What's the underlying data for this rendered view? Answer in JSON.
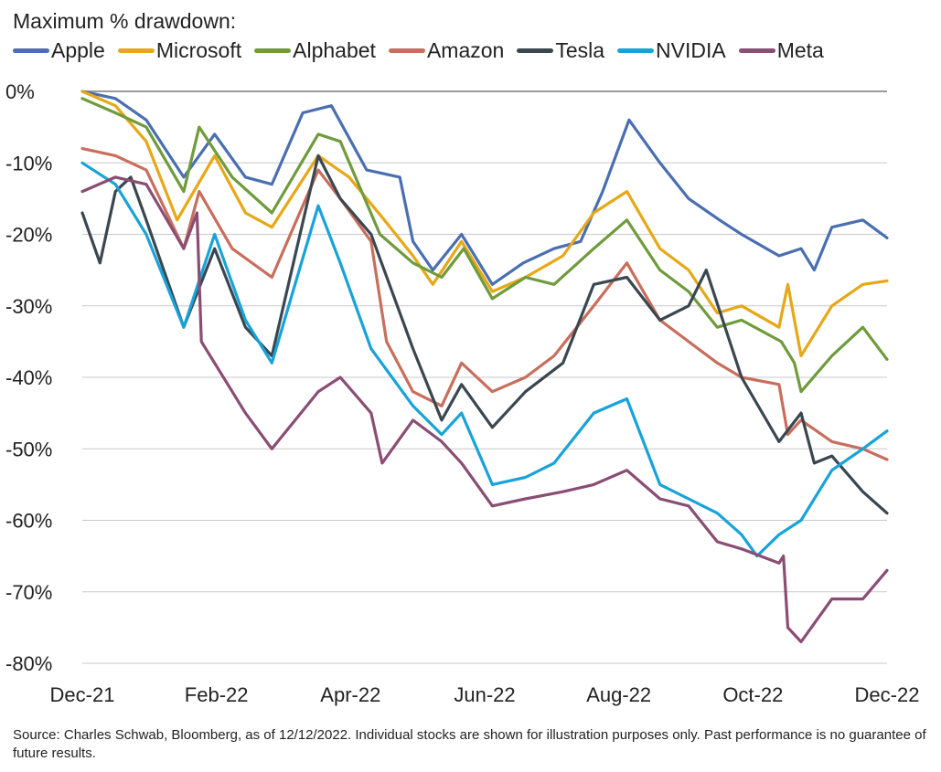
{
  "chart_data": {
    "type": "line",
    "title": "Maximum % drawdown:",
    "x_ticks": [
      "Dec-21",
      "Feb-22",
      "Apr-22",
      "Jun-22",
      "Aug-22",
      "Oct-22",
      "Dec-22"
    ],
    "ylim": [
      -80,
      0
    ],
    "y_ticks": [
      0,
      -10,
      -20,
      -30,
      -40,
      -50,
      -60,
      -70,
      -80
    ],
    "y_tick_labels": [
      "0%",
      "-10%",
      "-20%",
      "-30%",
      "-40%",
      "-50%",
      "-60%",
      "-70%",
      "-80%"
    ],
    "grid": "horizontal",
    "legend_position": "top",
    "series": [
      {
        "name": "Apple",
        "color": "#4a6fb0",
        "points": [
          [
            "2021-12-12",
            0
          ],
          [
            "2021-12-27",
            -1
          ],
          [
            "2022-01-10",
            -4
          ],
          [
            "2022-01-27",
            -12
          ],
          [
            "2022-02-10",
            -6
          ],
          [
            "2022-02-24",
            -12
          ],
          [
            "2022-03-08",
            -13
          ],
          [
            "2022-03-22",
            -3
          ],
          [
            "2022-04-04",
            -2
          ],
          [
            "2022-04-20",
            -11
          ],
          [
            "2022-05-05",
            -12
          ],
          [
            "2022-05-11",
            -21
          ],
          [
            "2022-05-20",
            -25
          ],
          [
            "2022-06-02",
            -20
          ],
          [
            "2022-06-16",
            -27
          ],
          [
            "2022-06-30",
            -24
          ],
          [
            "2022-07-14",
            -22
          ],
          [
            "2022-07-26",
            -21
          ],
          [
            "2022-08-05",
            -14
          ],
          [
            "2022-08-17",
            -4
          ],
          [
            "2022-08-31",
            -10
          ],
          [
            "2022-09-13",
            -15
          ],
          [
            "2022-09-27",
            -18
          ],
          [
            "2022-10-07",
            -20
          ],
          [
            "2022-10-24",
            -23
          ],
          [
            "2022-11-03",
            -22
          ],
          [
            "2022-11-09",
            -25
          ],
          [
            "2022-11-17",
            -19
          ],
          [
            "2022-12-01",
            -18
          ],
          [
            "2022-12-12",
            -20.5
          ]
        ]
      },
      {
        "name": "Microsoft",
        "color": "#e6a817",
        "points": [
          [
            "2021-12-12",
            0
          ],
          [
            "2021-12-27",
            -2
          ],
          [
            "2022-01-10",
            -7
          ],
          [
            "2022-01-24",
            -18
          ],
          [
            "2022-02-10",
            -9
          ],
          [
            "2022-02-24",
            -17
          ],
          [
            "2022-03-08",
            -19
          ],
          [
            "2022-03-29",
            -9
          ],
          [
            "2022-04-12",
            -12
          ],
          [
            "2022-04-28",
            -18
          ],
          [
            "2022-05-11",
            -23
          ],
          [
            "2022-05-20",
            -27
          ],
          [
            "2022-06-02",
            -21
          ],
          [
            "2022-06-16",
            -28
          ],
          [
            "2022-07-01",
            -26
          ],
          [
            "2022-07-18",
            -23
          ],
          [
            "2022-08-01",
            -17
          ],
          [
            "2022-08-16",
            -14
          ],
          [
            "2022-08-31",
            -22
          ],
          [
            "2022-09-13",
            -25
          ],
          [
            "2022-09-26",
            -31
          ],
          [
            "2022-10-07",
            -30
          ],
          [
            "2022-10-24",
            -33
          ],
          [
            "2022-10-28",
            -27
          ],
          [
            "2022-11-03",
            -37
          ],
          [
            "2022-11-17",
            -30
          ],
          [
            "2022-12-01",
            -27
          ],
          [
            "2022-12-12",
            -26.5
          ]
        ]
      },
      {
        "name": "Alphabet",
        "color": "#6f9b3c",
        "points": [
          [
            "2021-12-12",
            -1
          ],
          [
            "2021-12-27",
            -3
          ],
          [
            "2022-01-10",
            -5
          ],
          [
            "2022-01-27",
            -14
          ],
          [
            "2022-02-03",
            -5
          ],
          [
            "2022-02-18",
            -12
          ],
          [
            "2022-03-08",
            -17
          ],
          [
            "2022-03-29",
            -6
          ],
          [
            "2022-04-08",
            -7
          ],
          [
            "2022-04-26",
            -20
          ],
          [
            "2022-05-11",
            -24
          ],
          [
            "2022-05-24",
            -26
          ],
          [
            "2022-06-03",
            -22
          ],
          [
            "2022-06-16",
            -29
          ],
          [
            "2022-07-01",
            -26
          ],
          [
            "2022-07-14",
            -27
          ],
          [
            "2022-08-01",
            -22
          ],
          [
            "2022-08-16",
            -18
          ],
          [
            "2022-08-31",
            -25
          ],
          [
            "2022-09-13",
            -28
          ],
          [
            "2022-09-26",
            -33
          ],
          [
            "2022-10-07",
            -32
          ],
          [
            "2022-10-25",
            -35
          ],
          [
            "2022-10-31",
            -38
          ],
          [
            "2022-11-03",
            -42
          ],
          [
            "2022-11-17",
            -37
          ],
          [
            "2022-12-01",
            -33
          ],
          [
            "2022-12-12",
            -37.5
          ]
        ]
      },
      {
        "name": "Amazon",
        "color": "#c86e5c",
        "points": [
          [
            "2021-12-12",
            -8
          ],
          [
            "2021-12-27",
            -9
          ],
          [
            "2022-01-10",
            -11
          ],
          [
            "2022-01-27",
            -22
          ],
          [
            "2022-02-03",
            -14
          ],
          [
            "2022-02-18",
            -22
          ],
          [
            "2022-03-08",
            -26
          ],
          [
            "2022-03-29",
            -11
          ],
          [
            "2022-04-08",
            -15
          ],
          [
            "2022-04-22",
            -21
          ],
          [
            "2022-04-29",
            -35
          ],
          [
            "2022-05-11",
            -42
          ],
          [
            "2022-05-24",
            -44
          ],
          [
            "2022-06-02",
            -38
          ],
          [
            "2022-06-16",
            -42
          ],
          [
            "2022-07-01",
            -40
          ],
          [
            "2022-07-14",
            -37
          ],
          [
            "2022-08-01",
            -30
          ],
          [
            "2022-08-16",
            -24
          ],
          [
            "2022-08-31",
            -32
          ],
          [
            "2022-09-13",
            -35
          ],
          [
            "2022-09-26",
            -38
          ],
          [
            "2022-10-07",
            -40
          ],
          [
            "2022-10-24",
            -41
          ],
          [
            "2022-10-28",
            -48
          ],
          [
            "2022-11-03",
            -46
          ],
          [
            "2022-11-17",
            -49
          ],
          [
            "2022-12-01",
            -50
          ],
          [
            "2022-12-12",
            -51.5
          ]
        ]
      },
      {
        "name": "Tesla",
        "color": "#3a4750",
        "points": [
          [
            "2021-12-12",
            -17
          ],
          [
            "2021-12-20",
            -24
          ],
          [
            "2021-12-27",
            -14
          ],
          [
            "2022-01-03",
            -12
          ],
          [
            "2022-01-10",
            -18
          ],
          [
            "2022-01-27",
            -33
          ],
          [
            "2022-02-10",
            -22
          ],
          [
            "2022-02-24",
            -33
          ],
          [
            "2022-03-08",
            -37
          ],
          [
            "2022-03-29",
            -9
          ],
          [
            "2022-04-08",
            -15
          ],
          [
            "2022-04-22",
            -20
          ],
          [
            "2022-05-11",
            -36
          ],
          [
            "2022-05-24",
            -46
          ],
          [
            "2022-06-02",
            -41
          ],
          [
            "2022-06-16",
            -47
          ],
          [
            "2022-07-01",
            -42
          ],
          [
            "2022-07-18",
            -38
          ],
          [
            "2022-08-01",
            -27
          ],
          [
            "2022-08-16",
            -26
          ],
          [
            "2022-08-31",
            -32
          ],
          [
            "2022-09-13",
            -30
          ],
          [
            "2022-09-21",
            -25
          ],
          [
            "2022-10-07",
            -40
          ],
          [
            "2022-10-24",
            -49
          ],
          [
            "2022-11-03",
            -45
          ],
          [
            "2022-11-09",
            -52
          ],
          [
            "2022-11-17",
            -51
          ],
          [
            "2022-12-01",
            -56
          ],
          [
            "2022-12-12",
            -59
          ]
        ]
      },
      {
        "name": "NVIDIA",
        "color": "#18a3d8",
        "points": [
          [
            "2021-12-12",
            -10
          ],
          [
            "2021-12-27",
            -13
          ],
          [
            "2022-01-10",
            -20
          ],
          [
            "2022-01-27",
            -33
          ],
          [
            "2022-02-10",
            -20
          ],
          [
            "2022-02-24",
            -32
          ],
          [
            "2022-03-08",
            -38
          ],
          [
            "2022-03-29",
            -16
          ],
          [
            "2022-04-08",
            -24
          ],
          [
            "2022-04-22",
            -36
          ],
          [
            "2022-05-11",
            -44
          ],
          [
            "2022-05-24",
            -48
          ],
          [
            "2022-06-02",
            -45
          ],
          [
            "2022-06-16",
            -55
          ],
          [
            "2022-07-01",
            -54
          ],
          [
            "2022-07-14",
            -52
          ],
          [
            "2022-08-01",
            -45
          ],
          [
            "2022-08-16",
            -43
          ],
          [
            "2022-08-31",
            -55
          ],
          [
            "2022-09-13",
            -57
          ],
          [
            "2022-09-26",
            -59
          ],
          [
            "2022-10-07",
            -62
          ],
          [
            "2022-10-14",
            -65
          ],
          [
            "2022-10-24",
            -62
          ],
          [
            "2022-11-03",
            -60
          ],
          [
            "2022-11-17",
            -53
          ],
          [
            "2022-12-01",
            -50
          ],
          [
            "2022-12-12",
            -47.5
          ]
        ]
      },
      {
        "name": "Meta",
        "color": "#8a4d73",
        "points": [
          [
            "2021-12-12",
            -14
          ],
          [
            "2021-12-27",
            -12
          ],
          [
            "2022-01-10",
            -13
          ],
          [
            "2022-01-27",
            -22
          ],
          [
            "2022-02-02",
            -17
          ],
          [
            "2022-02-04",
            -35
          ],
          [
            "2022-02-24",
            -45
          ],
          [
            "2022-03-08",
            -50
          ],
          [
            "2022-03-29",
            -42
          ],
          [
            "2022-04-08",
            -40
          ],
          [
            "2022-04-22",
            -45
          ],
          [
            "2022-04-27",
            -52
          ],
          [
            "2022-05-11",
            -46
          ],
          [
            "2022-05-24",
            -49
          ],
          [
            "2022-06-02",
            -52
          ],
          [
            "2022-06-16",
            -58
          ],
          [
            "2022-07-01",
            -57
          ],
          [
            "2022-07-18",
            -56
          ],
          [
            "2022-08-01",
            -55
          ],
          [
            "2022-08-16",
            -53
          ],
          [
            "2022-08-31",
            -57
          ],
          [
            "2022-09-13",
            -58
          ],
          [
            "2022-09-26",
            -63
          ],
          [
            "2022-10-07",
            -64
          ],
          [
            "2022-10-24",
            -66
          ],
          [
            "2022-10-26",
            -65
          ],
          [
            "2022-10-28",
            -75
          ],
          [
            "2022-11-03",
            -77
          ],
          [
            "2022-11-17",
            -71
          ],
          [
            "2022-12-01",
            -71
          ],
          [
            "2022-12-12",
            -67
          ]
        ]
      }
    ]
  },
  "source_note": "Source: Charles Schwab, Bloomberg, as of 12/12/2022. Individual stocks are shown for illustration purposes only. Past performance is no guarantee of future results."
}
